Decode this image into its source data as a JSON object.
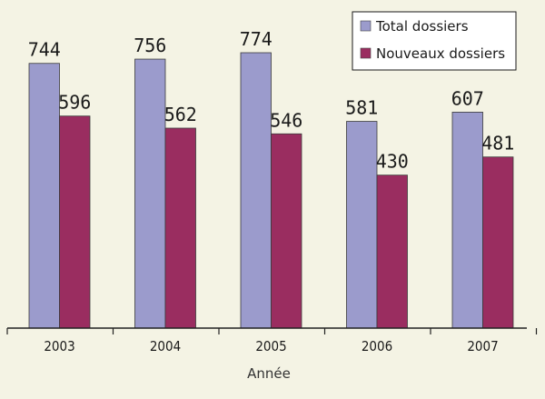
{
  "chart_data": {
    "type": "bar",
    "categories": [
      "2003",
      "2004",
      "2005",
      "2006",
      "2007"
    ],
    "series": [
      {
        "name": "Total dossiers",
        "values": [
          744,
          756,
          774,
          581,
          607
        ],
        "color": "#9b9bcc"
      },
      {
        "name": "Nouveaux dossiers",
        "values": [
          596,
          562,
          546,
          430,
          481
        ],
        "color": "#9a2d60"
      }
    ],
    "title": "",
    "xlabel": "Année",
    "ylabel": "",
    "ylim": [
      0,
      774
    ],
    "grid": false,
    "legend_position": "top-right",
    "background": "#f4f3e4"
  }
}
